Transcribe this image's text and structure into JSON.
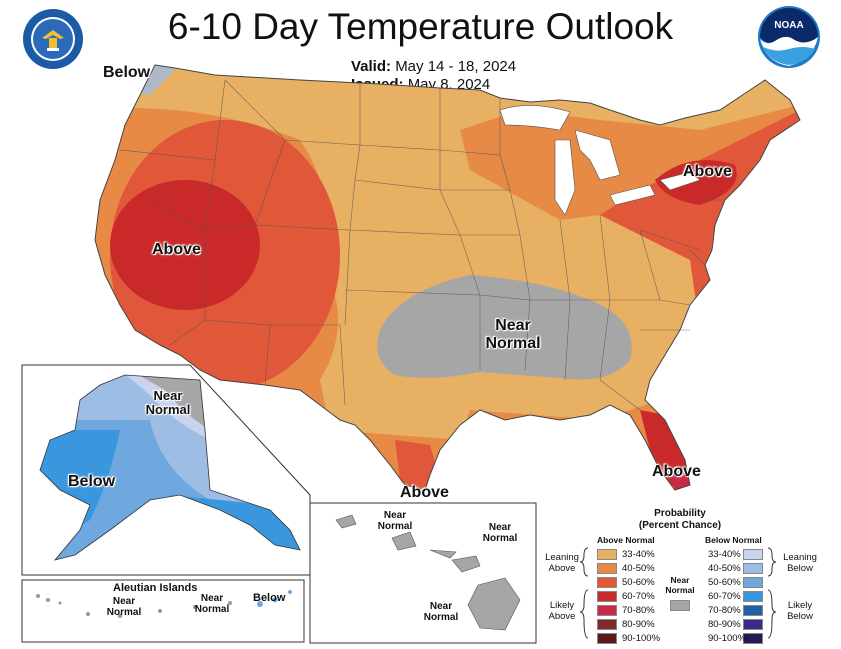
{
  "header": {
    "title": "6-10 Day Temperature Outlook",
    "valid_label": "Valid:",
    "valid_value": "May 14 - 18, 2024",
    "issued_label": "Issued:",
    "issued_value": "May 8, 2024"
  },
  "logos": {
    "left": "department-of-commerce-seal",
    "right": "noaa-logo",
    "noaa_text": "NOAA"
  },
  "map_labels": {
    "below_nw": "Below",
    "above_west": "Above",
    "above_ne": "Above",
    "near_normal_central": "Near Normal",
    "above_fl": "Above",
    "above_tx": "Above"
  },
  "alaska": {
    "near_normal": "Near Normal",
    "below": "Below"
  },
  "aleutian": {
    "title": "Aleutian Islands",
    "near_normal_1": "Near Normal",
    "near_normal_2": "Near Normal",
    "below": "Below"
  },
  "hawaii": {
    "near_normal_1": "Near Normal",
    "near_normal_2": "Near Normal",
    "near_normal_3": "Near Normal"
  },
  "legend": {
    "title": "Probability",
    "subtitle": "(Percent Chance)",
    "above_header": "Above Normal",
    "below_header": "Below Normal",
    "leaning_above": "Leaning Above",
    "likely_above": "Likely Above",
    "leaning_below": "Leaning Below",
    "likely_below": "Likely Below",
    "near_normal": "Near Normal",
    "near_color": "#a6a6a6",
    "above_bins": [
      {
        "label": "33-40%",
        "color": "#e8b062"
      },
      {
        "label": "40-50%",
        "color": "#e68a45"
      },
      {
        "label": "50-60%",
        "color": "#e0573a"
      },
      {
        "label": "60-70%",
        "color": "#c92a29"
      },
      {
        "label": "70-80%",
        "color": "#c82a48"
      },
      {
        "label": "80-90%",
        "color": "#7f2a2a"
      },
      {
        "label": "90-100%",
        "color": "#5a1a1a"
      }
    ],
    "below_bins": [
      {
        "label": "33-40%",
        "color": "#c8d4ee"
      },
      {
        "label": "40-50%",
        "color": "#9dbde4"
      },
      {
        "label": "50-60%",
        "color": "#6ea8de"
      },
      {
        "label": "60-70%",
        "color": "#3a97dd"
      },
      {
        "label": "70-80%",
        "color": "#1f62a8"
      },
      {
        "label": "80-90%",
        "color": "#3c2a8a"
      },
      {
        "label": "90-100%",
        "color": "#241a55"
      }
    ]
  }
}
